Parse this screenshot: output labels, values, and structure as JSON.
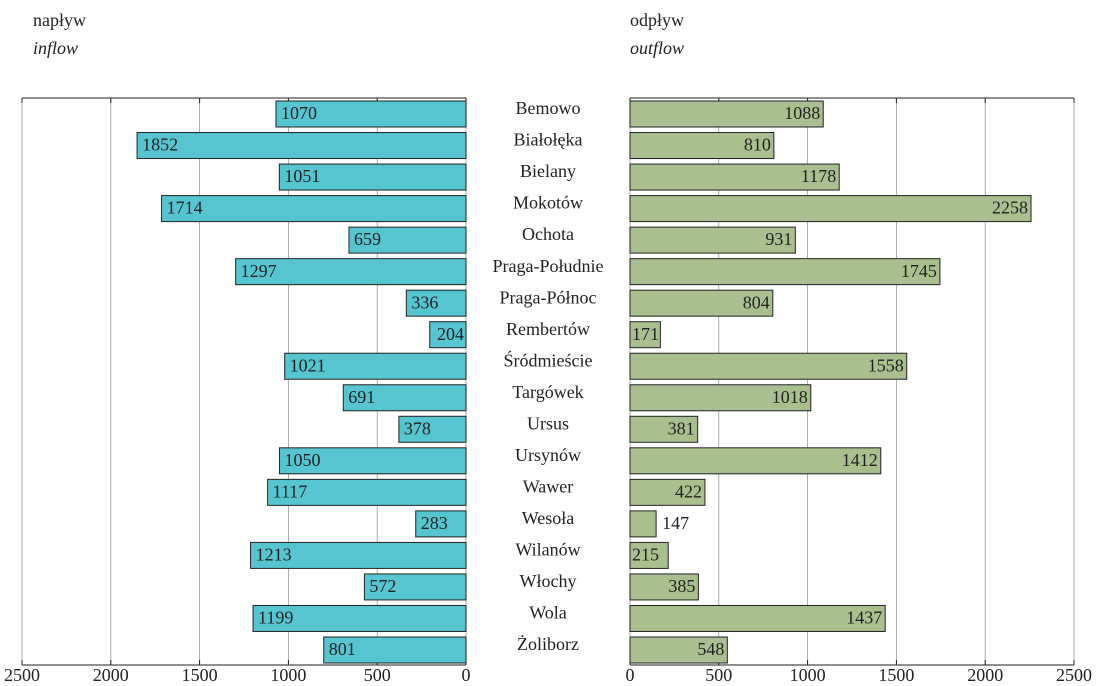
{
  "chart_data": {
    "type": "bar",
    "categories": [
      "Bemowo",
      "Białołęka",
      "Bielany",
      "Mokotów",
      "Ochota",
      "Praga-Południe",
      "Praga-Północ",
      "Rembertów",
      "Śródmieście",
      "Targówek",
      "Ursus",
      "Ursynów",
      "Wawer",
      "Wesoła",
      "Wilanów",
      "Włochy",
      "Wola",
      "Żoliborz"
    ],
    "series": [
      {
        "name": "napływ",
        "subtitle": "inflow",
        "color": "#56c5d0",
        "reversed": true,
        "values": [
          1070,
          1852,
          1051,
          1714,
          659,
          1297,
          336,
          204,
          1021,
          691,
          378,
          1050,
          1117,
          283,
          1213,
          572,
          1199,
          801
        ],
        "xlim": [
          0,
          2500
        ],
        "xticks": [
          0,
          500,
          1000,
          1500,
          2000,
          2500
        ]
      },
      {
        "name": "odpływ",
        "subtitle": "outflow",
        "color": "#a9bf8f",
        "reversed": false,
        "values": [
          1088,
          810,
          1178,
          2258,
          931,
          1745,
          804,
          171,
          1558,
          1018,
          381,
          1412,
          422,
          147,
          215,
          385,
          1437,
          548
        ],
        "xlim": [
          0,
          2500
        ],
        "xticks": [
          0,
          500,
          1000,
          1500,
          2000,
          2500
        ]
      }
    ],
    "grid": true
  }
}
